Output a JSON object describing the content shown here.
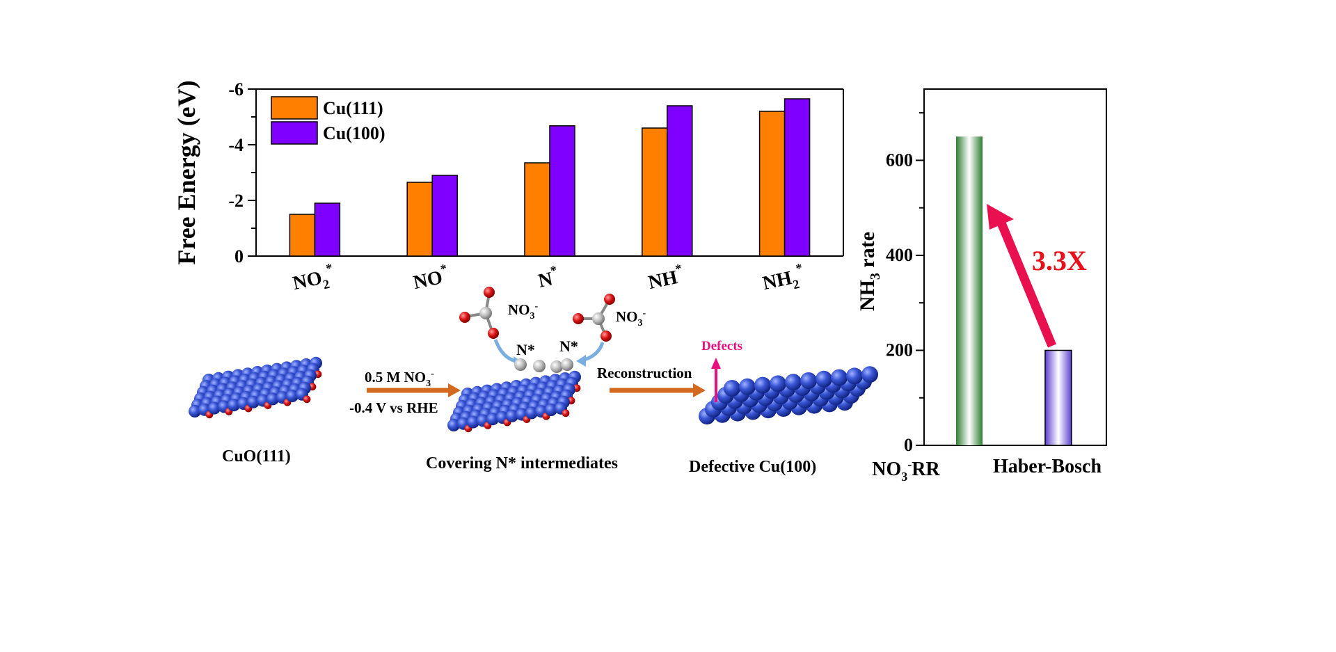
{
  "chart_data": [
    {
      "type": "bar",
      "categories": [
        "NO2*",
        "NO*",
        "N*",
        "NH*",
        "NH2*"
      ],
      "series": [
        {
          "name": "Cu(111)",
          "values": [
            -1.5,
            -2.65,
            -3.35,
            -4.6,
            -5.2
          ],
          "color": "#FF8000"
        },
        {
          "name": "Cu(100)",
          "values": [
            -1.9,
            -2.9,
            -4.68,
            -5.4,
            -5.65
          ],
          "color": "#8000FF"
        }
      ],
      "ylabel": "Free Energy (eV)",
      "ylim": [
        0,
        -6
      ],
      "yticks": [
        "-6",
        "-4",
        "-2",
        "0"
      ],
      "legend": "top-left"
    },
    {
      "type": "bar",
      "categories": [
        "NO3-RR",
        "Haber-Bosch"
      ],
      "values": [
        650,
        200
      ],
      "colors": [
        "#2E7D32",
        "#6A4FD6"
      ],
      "ylabel": "NH3 rate",
      "ylim": [
        0,
        750
      ],
      "yticks": [
        "0",
        "200",
        "400",
        "600"
      ],
      "annotation": "3.3X",
      "annotation_color": "#E8104E"
    }
  ],
  "scheme": {
    "step1_label": "CuO(111)",
    "step2_label": "Covering N* intermediates",
    "step3_label": "Defective Cu(100)",
    "arrow1_top": "0.5 M NO",
    "arrow1_bottom": "-0.4 V vs RHE",
    "arrow2": "Reconstruction",
    "defects": "Defects",
    "nitrate": "NO",
    "n_star": "N*"
  }
}
